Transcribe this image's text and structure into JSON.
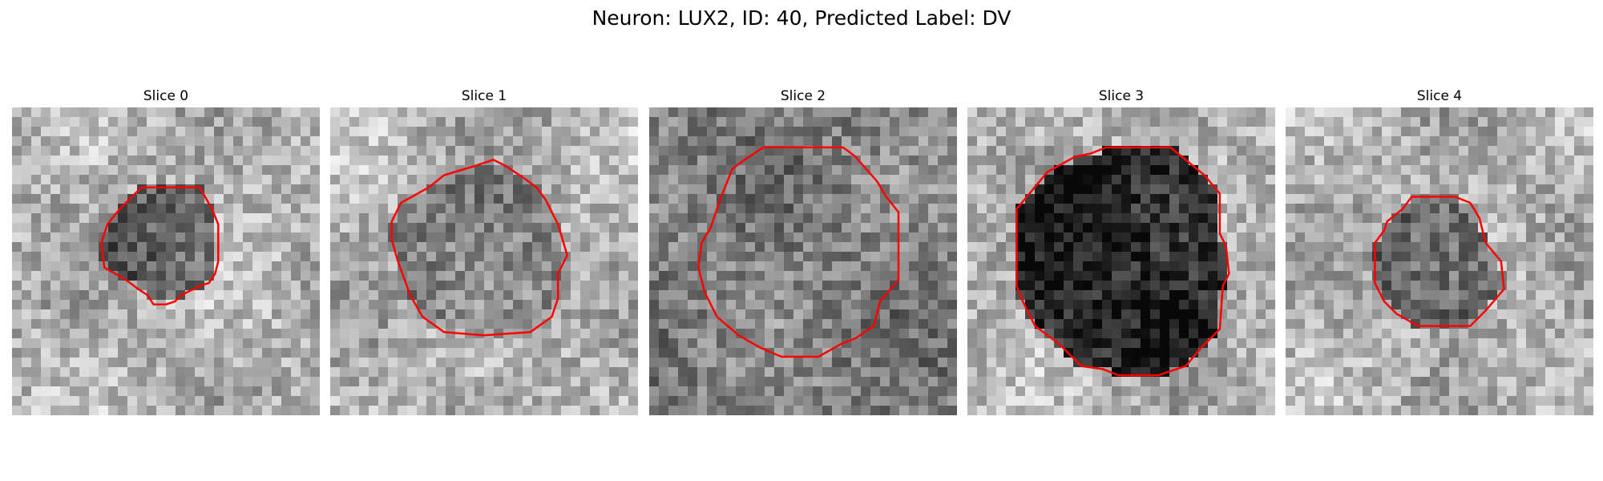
{
  "figure": {
    "suptitle": "Neuron: LUX2, ID: 40, Predicted Label: DV",
    "contour_color": "#ff0000",
    "colormap": "gray"
  },
  "panels": [
    {
      "title": "Slice 0",
      "background_level": "light",
      "contour_region_level": "medium-dark",
      "contour_vertices": [
        [
          0.42,
          0.26
        ],
        [
          0.61,
          0.26
        ],
        [
          0.65,
          0.33
        ],
        [
          0.67,
          0.38
        ],
        [
          0.67,
          0.5
        ],
        [
          0.66,
          0.54
        ],
        [
          0.64,
          0.57
        ],
        [
          0.61,
          0.58
        ],
        [
          0.55,
          0.61
        ],
        [
          0.53,
          0.63
        ],
        [
          0.5,
          0.64
        ],
        [
          0.46,
          0.64
        ],
        [
          0.44,
          0.61
        ],
        [
          0.41,
          0.59
        ],
        [
          0.37,
          0.56
        ],
        [
          0.3,
          0.52
        ],
        [
          0.29,
          0.44
        ],
        [
          0.31,
          0.38
        ],
        [
          0.35,
          0.33
        ]
      ]
    },
    {
      "title": "Slice 1",
      "background_level": "light",
      "contour_region_level": "medium",
      "contour_vertices": [
        [
          0.32,
          0.26
        ],
        [
          0.37,
          0.22
        ],
        [
          0.47,
          0.19
        ],
        [
          0.53,
          0.17
        ],
        [
          0.57,
          0.19
        ],
        [
          0.63,
          0.23
        ],
        [
          0.67,
          0.26
        ],
        [
          0.7,
          0.3
        ],
        [
          0.74,
          0.38
        ],
        [
          0.77,
          0.48
        ],
        [
          0.74,
          0.54
        ],
        [
          0.74,
          0.62
        ],
        [
          0.72,
          0.68
        ],
        [
          0.65,
          0.73
        ],
        [
          0.5,
          0.74
        ],
        [
          0.37,
          0.73
        ],
        [
          0.3,
          0.68
        ],
        [
          0.26,
          0.61
        ],
        [
          0.22,
          0.5
        ],
        [
          0.2,
          0.43
        ],
        [
          0.2,
          0.37
        ],
        [
          0.23,
          0.31
        ]
      ]
    },
    {
      "title": "Slice 2",
      "background_level": "medium",
      "contour_region_level": "medium",
      "contour_vertices": [
        [
          0.37,
          0.13
        ],
        [
          0.63,
          0.13
        ],
        [
          0.67,
          0.16
        ],
        [
          0.74,
          0.24
        ],
        [
          0.77,
          0.29
        ],
        [
          0.81,
          0.34
        ],
        [
          0.81,
          0.56
        ],
        [
          0.75,
          0.63
        ],
        [
          0.73,
          0.71
        ],
        [
          0.67,
          0.75
        ],
        [
          0.62,
          0.77
        ],
        [
          0.55,
          0.81
        ],
        [
          0.43,
          0.81
        ],
        [
          0.36,
          0.78
        ],
        [
          0.29,
          0.74
        ],
        [
          0.22,
          0.68
        ],
        [
          0.18,
          0.6
        ],
        [
          0.16,
          0.52
        ],
        [
          0.17,
          0.44
        ],
        [
          0.2,
          0.39
        ],
        [
          0.23,
          0.3
        ],
        [
          0.27,
          0.2
        ],
        [
          0.31,
          0.17
        ]
      ]
    },
    {
      "title": "Slice 3",
      "background_level": "light",
      "contour_region_level": "dark",
      "contour_vertices": [
        [
          0.35,
          0.16
        ],
        [
          0.4,
          0.15
        ],
        [
          0.45,
          0.13
        ],
        [
          0.66,
          0.13
        ],
        [
          0.77,
          0.22
        ],
        [
          0.82,
          0.28
        ],
        [
          0.82,
          0.41
        ],
        [
          0.84,
          0.45
        ],
        [
          0.85,
          0.54
        ],
        [
          0.83,
          0.58
        ],
        [
          0.82,
          0.72
        ],
        [
          0.76,
          0.78
        ],
        [
          0.71,
          0.84
        ],
        [
          0.62,
          0.87
        ],
        [
          0.49,
          0.87
        ],
        [
          0.44,
          0.85
        ],
        [
          0.37,
          0.84
        ],
        [
          0.3,
          0.77
        ],
        [
          0.22,
          0.71
        ],
        [
          0.18,
          0.63
        ],
        [
          0.16,
          0.58
        ],
        [
          0.16,
          0.33
        ],
        [
          0.21,
          0.27
        ],
        [
          0.26,
          0.21
        ]
      ]
    },
    {
      "title": "Slice 4",
      "background_level": "light",
      "contour_region_level": "medium-dark",
      "contour_vertices": [
        [
          0.41,
          0.29
        ],
        [
          0.47,
          0.29
        ],
        [
          0.55,
          0.29
        ],
        [
          0.6,
          0.31
        ],
        [
          0.63,
          0.36
        ],
        [
          0.65,
          0.44
        ],
        [
          0.7,
          0.5
        ],
        [
          0.71,
          0.59
        ],
        [
          0.65,
          0.66
        ],
        [
          0.6,
          0.71
        ],
        [
          0.58,
          0.71
        ],
        [
          0.43,
          0.71
        ],
        [
          0.36,
          0.67
        ],
        [
          0.32,
          0.63
        ],
        [
          0.29,
          0.57
        ],
        [
          0.29,
          0.44
        ],
        [
          0.32,
          0.4
        ],
        [
          0.33,
          0.37
        ],
        [
          0.38,
          0.33
        ]
      ]
    }
  ]
}
